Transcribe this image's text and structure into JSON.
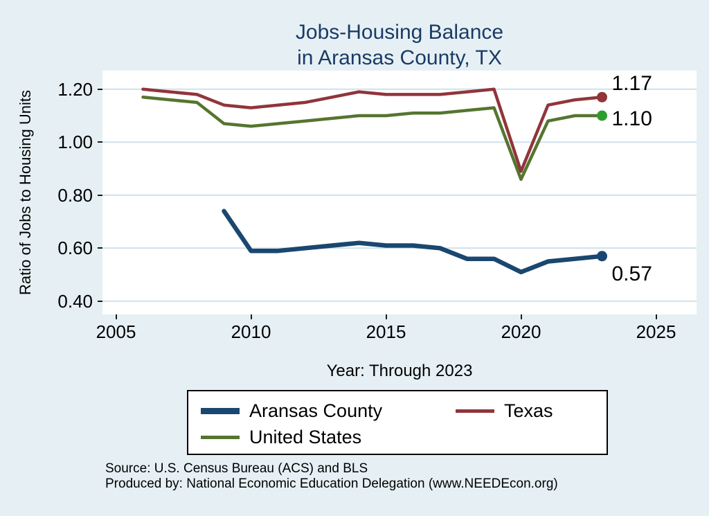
{
  "title": {
    "line1": "Jobs-Housing Balance",
    "line2": "in Aransas County, TX"
  },
  "axes": {
    "y_label": "Ratio of Jobs to Housing Units",
    "x_label": "Year: Through 2023"
  },
  "chart_data": {
    "type": "line",
    "title": "Jobs-Housing Balance in Aransas County, TX",
    "xlabel": "Year: Through 2023",
    "ylabel": "Ratio of Jobs to Housing Units",
    "xlim": [
      2004.5,
      2026.5
    ],
    "ylim": [
      0.35,
      1.27
    ],
    "x_ticks": [
      2005,
      2010,
      2015,
      2020,
      2025
    ],
    "x_tick_labels": [
      "2005",
      "2010",
      "2015",
      "2020",
      "2025"
    ],
    "y_ticks": [
      0.4,
      0.6,
      0.8,
      1.0,
      1.2
    ],
    "y_tick_labels": [
      "0.40",
      "0.60",
      "0.80",
      "1.00",
      "1.20"
    ],
    "grid": "horizontal",
    "legend_position": "bottom",
    "series": [
      {
        "name": "Aransas County",
        "color": "#1a476f",
        "marker_color": "#1a476f",
        "line_width": 6.5,
        "end_label": "0.57",
        "x": [
          2009,
          2010,
          2011,
          2012,
          2013,
          2014,
          2015,
          2016,
          2017,
          2018,
          2019,
          2020,
          2021,
          2022,
          2023
        ],
        "values": [
          0.74,
          0.59,
          0.59,
          0.6,
          0.61,
          0.62,
          0.61,
          0.61,
          0.6,
          0.56,
          0.56,
          0.51,
          0.55,
          0.56,
          0.57
        ]
      },
      {
        "name": "Texas",
        "color": "#90353b",
        "marker_color": "#90353b",
        "line_width": 4.5,
        "end_label": "1.17",
        "x": [
          2006,
          2007,
          2008,
          2009,
          2010,
          2011,
          2012,
          2013,
          2014,
          2015,
          2016,
          2017,
          2018,
          2019,
          2020,
          2021,
          2022,
          2023
        ],
        "values": [
          1.2,
          1.19,
          1.18,
          1.14,
          1.13,
          1.14,
          1.15,
          1.17,
          1.19,
          1.18,
          1.18,
          1.18,
          1.19,
          1.2,
          0.89,
          1.14,
          1.16,
          1.17
        ]
      },
      {
        "name": "United States",
        "color": "#55752f",
        "marker_color": "#2d9e2d",
        "line_width": 4.5,
        "end_label": "1.10",
        "x": [
          2006,
          2007,
          2008,
          2009,
          2010,
          2011,
          2012,
          2013,
          2014,
          2015,
          2016,
          2017,
          2018,
          2019,
          2020,
          2021,
          2022,
          2023
        ],
        "values": [
          1.17,
          1.16,
          1.15,
          1.07,
          1.06,
          1.07,
          1.08,
          1.09,
          1.1,
          1.1,
          1.11,
          1.11,
          1.12,
          1.13,
          0.86,
          1.08,
          1.1,
          1.1
        ]
      }
    ]
  },
  "legend": {
    "items": [
      {
        "label": "Aransas County",
        "color": "#1a476f"
      },
      {
        "label": "Texas",
        "color": "#90353b"
      },
      {
        "label": "United States",
        "color": "#55752f"
      }
    ]
  },
  "footer": {
    "line1": "Source: U.S. Census Bureau (ACS) and BLS",
    "line2": "Produced by: National Economic Education Delegation (www.NEEDEcon.org)"
  },
  "colors": {
    "background": "#e6f0f4",
    "plot_background": "#ffffff",
    "grid": "#cfe2ec",
    "title": "#1a3b66",
    "text": "#000000"
  }
}
